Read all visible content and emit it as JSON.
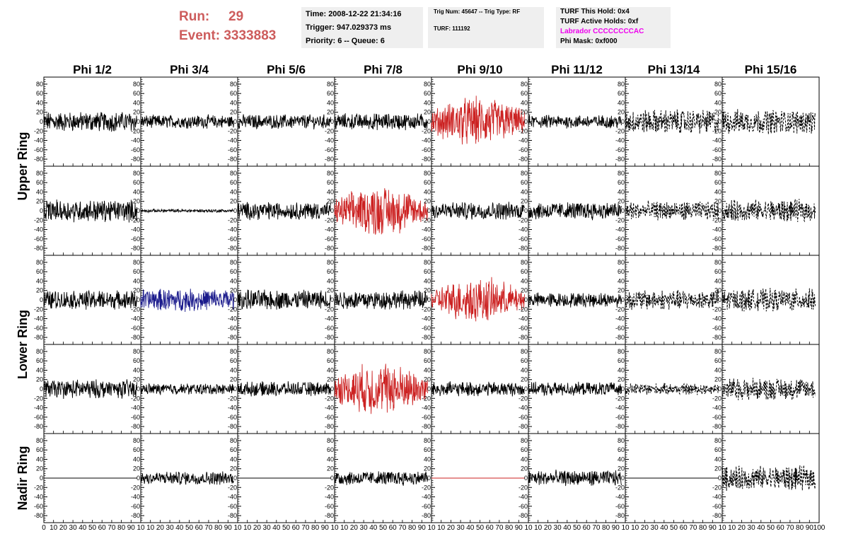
{
  "header": {
    "run_label": "Run:",
    "run_value": "29",
    "event_label": "Event:",
    "event_value": "3333883"
  },
  "info_time": {
    "time": "Time: 2008-12-22 21:34:16",
    "trigger": "Trigger: 947.029373 ms",
    "priority": "Priority: 6 -- Queue: 6"
  },
  "info_trig": {
    "trig": "Trig Num: 45647 -- Trig Type: RF",
    "turf": "TURF: 111192"
  },
  "info_turf": {
    "this_hold": "TURF This Hold: 0x4",
    "active_holds": "TURF Active Holds: 0xf",
    "labrador": "Labrador CCCCCCCCAC",
    "phi_mask": "Phi Mask: 0xf000"
  },
  "colors": {
    "header_red": "#cd5c5c",
    "trace_black": "#000000",
    "trace_red": "#cc2222",
    "trace_blue": "#1a1a8c",
    "magenta": "#ee00ee",
    "panel_grey": "#efefef"
  },
  "chart_data": {
    "type": "line",
    "columns": [
      "Phi 1/2",
      "Phi 3/4",
      "Phi 5/6",
      "Phi 7/8",
      "Phi 9/10",
      "Phi 11/12",
      "Phi 13/14",
      "Phi 15/16"
    ],
    "row_groups": [
      {
        "label": "Upper Ring",
        "rows": [
          0,
          1
        ]
      },
      {
        "label": "Lower Ring",
        "rows": [
          2,
          3
        ]
      },
      {
        "label": "Nadir Ring",
        "rows": [
          4
        ]
      }
    ],
    "xlim": [
      0,
      100
    ],
    "ylim": [
      -95,
      95
    ],
    "y_ticks": [
      -80,
      -60,
      -40,
      -20,
      0,
      20,
      40,
      60,
      80
    ],
    "x_tick_labels": [
      "0",
      "10",
      "20",
      "30",
      "40",
      "50",
      "60",
      "70",
      "80",
      "90",
      "10",
      "10",
      "20",
      "30",
      "40",
      "50",
      "60",
      "70",
      "80",
      "90",
      "10",
      "10",
      "20",
      "30",
      "40",
      "50",
      "60",
      "70",
      "80",
      "90",
      "10",
      "10",
      "20",
      "30",
      "40",
      "50",
      "60",
      "70",
      "80",
      "90",
      "10",
      "10",
      "20",
      "30",
      "40",
      "50",
      "60",
      "70",
      "80",
      "90",
      "10",
      "10",
      "20",
      "30",
      "40",
      "50",
      "60",
      "70",
      "80",
      "90",
      "10",
      "10",
      "20",
      "30",
      "40",
      "50",
      "60",
      "70",
      "80",
      "90",
      "10",
      "10",
      "20",
      "30",
      "40",
      "50",
      "60",
      "70",
      "80",
      "90",
      "100"
    ],
    "trace_style": [
      [
        "solid",
        "solid",
        "solid",
        "solid",
        "red",
        "solid",
        "dashed",
        "dashed"
      ],
      [
        "solid",
        "solid",
        "solid",
        "red",
        "solid",
        "solid",
        "dashed",
        "dashed"
      ],
      [
        "solid",
        "blue",
        "solid",
        "solid",
        "red",
        "solid",
        "dashed",
        "dashed"
      ],
      [
        "solid",
        "solid",
        "solid",
        "red",
        "solid",
        "solid",
        "dashed",
        "dashed"
      ],
      [
        "flat",
        "solid",
        "flat",
        "solid",
        "flat-red",
        "solid",
        "flat",
        "dashed"
      ]
    ],
    "trace_amplitude": [
      [
        18,
        12,
        13,
        15,
        45,
        12,
        22,
        22
      ],
      [
        20,
        3,
        16,
        45,
        16,
        16,
        17,
        20
      ],
      [
        17,
        20,
        18,
        17,
        40,
        13,
        18,
        20
      ],
      [
        17,
        10,
        13,
        48,
        13,
        12,
        10,
        20
      ],
      [
        0,
        12,
        0,
        13,
        0,
        14,
        0,
        22
      ]
    ]
  }
}
